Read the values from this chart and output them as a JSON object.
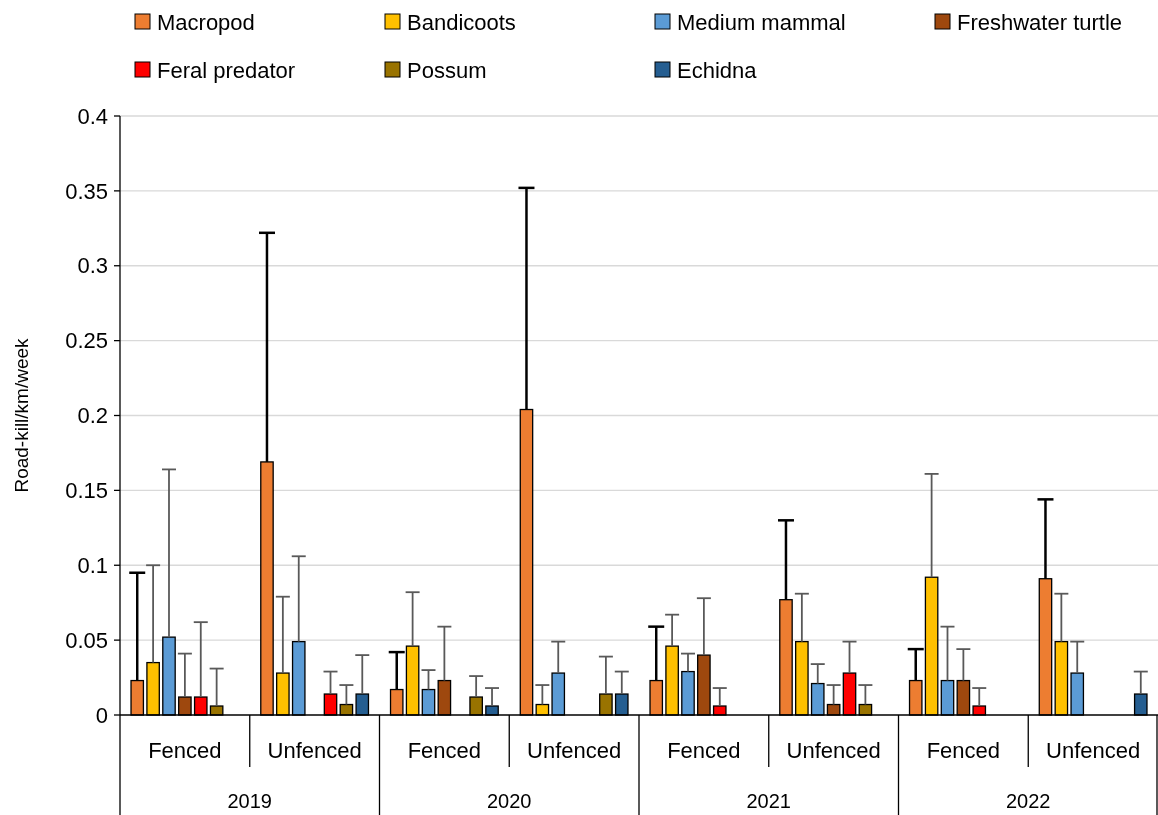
{
  "chart_data": {
    "type": "bar",
    "ylabel": "Road-kill/km/week",
    "categories": [
      "Fenced",
      "Unfenced",
      "Fenced",
      "Unfenced",
      "Fenced",
      "Unfenced",
      "Fenced",
      "Unfenced"
    ],
    "annotations": [
      "2019",
      "2020",
      "2021",
      "2022"
    ],
    "ylim": [
      0,
      0.4
    ],
    "yticks": [
      0,
      0.05,
      0.1,
      0.15,
      0.2,
      0.25,
      0.3,
      0.35,
      0.4
    ],
    "grid": "y",
    "legend": "top",
    "series": [
      {
        "name": "Macropod",
        "color": "#ed7d31",
        "values": [
          0.023,
          0.169,
          0.017,
          0.204,
          0.023,
          0.077,
          0.023,
          0.091
        ],
        "errors": [
          [
            0.023,
            0.095
          ],
          [
            0.169,
            0.322
          ],
          [
            0.017,
            0.042
          ],
          [
            0.204,
            0.352
          ],
          [
            0.023,
            0.059
          ],
          [
            0.077,
            0.13
          ],
          [
            0.023,
            0.044
          ],
          [
            0.091,
            0.144
          ]
        ]
      },
      {
        "name": "Bandicoots",
        "color": "#ffc000",
        "values": [
          0.035,
          0.028,
          0.046,
          0.007,
          0.046,
          0.049,
          0.092,
          0.049
        ],
        "errors": [
          [
            0.035,
            0.1
          ],
          [
            0.028,
            0.079
          ],
          [
            0.046,
            0.082
          ],
          [
            0.007,
            0.02
          ],
          [
            0.046,
            0.067
          ],
          [
            0.049,
            0.081
          ],
          [
            0.092,
            0.161
          ],
          [
            0.049,
            0.081
          ]
        ]
      },
      {
        "name": "Medium mammal",
        "color": "#5b9bd5",
        "values": [
          0.052,
          0.049,
          0.017,
          0.028,
          0.029,
          0.021,
          0.023,
          0.028
        ],
        "errors": [
          [
            0.052,
            0.164
          ],
          [
            0.049,
            0.106
          ],
          [
            0.017,
            0.03
          ],
          [
            0.028,
            0.049
          ],
          [
            0.029,
            0.041
          ],
          [
            0.021,
            0.034
          ],
          [
            0.023,
            0.059
          ],
          [
            0.028,
            0.049
          ]
        ]
      },
      {
        "name": "Freshwater turtle",
        "color": "#9e480e",
        "values": [
          0.012,
          null,
          0.023,
          null,
          0.04,
          0.007,
          0.023,
          null
        ],
        "errors": [
          [
            0.012,
            0.041
          ],
          null,
          [
            0.023,
            0.059
          ],
          null,
          [
            0.04,
            0.078
          ],
          [
            0.007,
            0.02
          ],
          [
            0.023,
            0.044
          ],
          null
        ]
      },
      {
        "name": "Feral predator",
        "color": "#ff0000",
        "values": [
          0.012,
          0.014,
          null,
          null,
          0.006,
          0.028,
          0.006,
          null
        ],
        "errors": [
          [
            0.012,
            0.062
          ],
          [
            0.014,
            0.029
          ],
          null,
          null,
          [
            0.006,
            0.018
          ],
          [
            0.028,
            0.049
          ],
          [
            0.006,
            0.018
          ],
          null
        ]
      },
      {
        "name": "Possum",
        "color": "#997300",
        "values": [
          0.006,
          0.007,
          0.012,
          0.014,
          null,
          0.007,
          null,
          null
        ],
        "errors": [
          [
            0.006,
            0.031
          ],
          [
            0.007,
            0.02
          ],
          [
            0.012,
            0.026
          ],
          [
            0.014,
            0.039
          ],
          null,
          [
            0.007,
            0.02
          ],
          null,
          null
        ]
      },
      {
        "name": "Echidna",
        "color": "#255e91",
        "values": [
          null,
          0.014,
          0.006,
          0.014,
          null,
          null,
          null,
          0.014
        ],
        "errors": [
          null,
          [
            0.014,
            0.04
          ],
          [
            0.006,
            0.018
          ],
          [
            0.014,
            0.029
          ],
          null,
          null,
          null,
          [
            0.014,
            0.029
          ]
        ]
      }
    ]
  }
}
